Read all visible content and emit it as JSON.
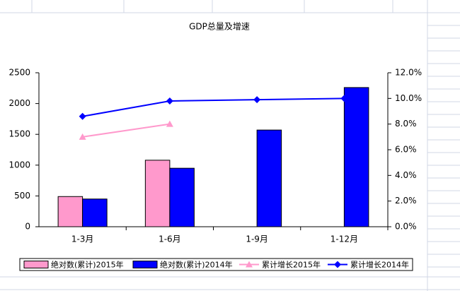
{
  "chart_data": {
    "type": "bar",
    "title": "GDP总量及增速",
    "categories": [
      "1-3月",
      "1-6月",
      "1-9月",
      "1-12月"
    ],
    "series": [
      {
        "name": "绝对数(累计)2015年",
        "type": "bar",
        "color": "#ff99cc",
        "values": [
          490,
          1080,
          null,
          null
        ]
      },
      {
        "name": "绝对数(累计)2014年",
        "type": "bar",
        "color": "#0000ff",
        "values": [
          450,
          950,
          1570,
          2260
        ]
      },
      {
        "name": "累计增长2015年",
        "type": "line",
        "marker": "triangle",
        "axis": "y2",
        "color": "#ff99cc",
        "values": [
          7.0,
          8.0,
          null,
          null
        ]
      },
      {
        "name": "累计增长2014年",
        "type": "line",
        "marker": "diamond",
        "axis": "y2",
        "color": "#0000ff",
        "values": [
          8.6,
          9.8,
          9.9,
          10.0
        ]
      }
    ],
    "ylim": [
      0,
      2500
    ],
    "yticks": [
      0,
      500,
      1000,
      1500,
      2000,
      2500
    ],
    "y2lim": [
      0,
      12
    ],
    "y2ticks": [
      {
        "value": 0,
        "label": "0.0%"
      },
      {
        "value": 2,
        "label": "2.0%"
      },
      {
        "value": 4,
        "label": "4.0%"
      },
      {
        "value": 6,
        "label": "6.0%"
      },
      {
        "value": 8,
        "label": "8.0%"
      },
      {
        "value": 10,
        "label": "10.0%"
      },
      {
        "value": 12,
        "label": "12.0%"
      }
    ],
    "legend": "bottom",
    "grid": false
  }
}
